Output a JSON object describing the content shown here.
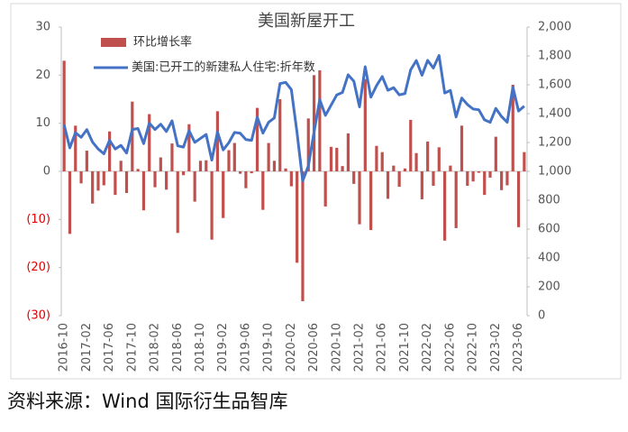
{
  "chart_data": {
    "type": "combo",
    "title": "美国新屋开工",
    "source": "资料来源：Wind 国际衍生品智库",
    "categories": [
      "2016-10",
      null,
      null,
      null,
      "2017-02",
      null,
      null,
      null,
      "2017-06",
      null,
      null,
      null,
      "2017-10",
      null,
      null,
      null,
      "2018-02",
      null,
      null,
      null,
      "2018-06",
      null,
      null,
      null,
      "2018-10",
      null,
      null,
      null,
      "2019-02",
      null,
      null,
      null,
      "2019-06",
      null,
      null,
      null,
      "2019-10",
      null,
      null,
      null,
      "2020-02",
      null,
      null,
      null,
      "2020-06",
      null,
      null,
      null,
      "2020-10",
      null,
      null,
      null,
      "2021-02",
      null,
      null,
      null,
      "2021-06",
      null,
      null,
      null,
      "2021-10",
      null,
      null,
      null,
      "2022-02",
      null,
      null,
      null,
      "2022-06",
      null,
      null,
      null,
      "2022-10",
      null,
      null,
      null,
      "2023-02",
      null,
      null,
      null,
      "2023-06",
      null
    ],
    "series": [
      {
        "name": "环比增长率",
        "kind": "bar",
        "color": "#c0504d",
        "values": [
          23,
          -13,
          9.5,
          -2.5,
          4.3,
          -6.7,
          -4,
          -2.9,
          8.3,
          -4.9,
          2.2,
          -4.5,
          14.5,
          0.5,
          -8.1,
          11.9,
          -3.3,
          2.9,
          -3.8,
          5.8,
          -12.8,
          -0.8,
          9.8,
          -6.3,
          2.2,
          2.3,
          -14.2,
          12.5,
          -9.7,
          4.4,
          5.9,
          -0.5,
          -3.5,
          -0.4,
          13.2,
          -8,
          5.9,
          2.2,
          15,
          0.6,
          -3.1,
          -19,
          -27,
          11,
          20,
          21,
          -7.3,
          5.1,
          4.9,
          1.1,
          7.9,
          -2.6,
          -11,
          19.2,
          -12.2,
          5.3,
          4,
          -5.7,
          1.2,
          -3.2,
          0.6,
          10.7,
          3.8,
          -5.8,
          6.2,
          -3,
          5,
          -14.4,
          1.2,
          -11.8,
          9.5,
          -3,
          -2.1,
          -0.3,
          -4.9,
          -1.3,
          7.2,
          -3.9,
          -2.9,
          18,
          -11.6,
          4
        ]
      },
      {
        "name": "美国:已开工的新建私人住宅:折年数",
        "kind": "line",
        "axis": "y2",
        "color": "#4472c4",
        "values": [
          1323,
          1163,
          1268,
          1236,
          1289,
          1203,
          1155,
          1122,
          1215,
          1155,
          1180,
          1127,
          1290,
          1297,
          1192,
          1334,
          1290,
          1327,
          1276,
          1350,
          1177,
          1168,
          1282,
          1201,
          1228,
          1256,
          1078,
          1273,
          1149,
          1199,
          1270,
          1264,
          1220,
          1215,
          1375,
          1265,
          1340,
          1370,
          1608,
          1617,
          1567,
          1269,
          934,
          1038,
          1273,
          1497,
          1388,
          1459,
          1530,
          1547,
          1669,
          1625,
          1447,
          1725,
          1514,
          1594,
          1657,
          1562,
          1580,
          1530,
          1539,
          1703,
          1768,
          1666,
          1769,
          1716,
          1803,
          1543,
          1561,
          1377,
          1508,
          1463,
          1432,
          1427,
          1357,
          1340,
          1436,
          1380,
          1340,
          1583,
          1418,
          1452
        ]
      }
    ],
    "ylim": [
      -30,
      30
    ],
    "yticks": [
      30,
      20,
      10,
      0,
      {
        "value": -10,
        "label": "(10)"
      },
      {
        "value": -20,
        "label": "(20)"
      },
      {
        "value": -30,
        "label": "(30)"
      }
    ],
    "negative_tick_color": "#e00000",
    "y2lim": [
      0,
      2000
    ],
    "y2ticks": [
      {
        "value": 2000,
        "label": "2,000"
      },
      {
        "value": 1800,
        "label": "1,800"
      },
      {
        "value": 1600,
        "label": "1,600"
      },
      {
        "value": 1400,
        "label": "1,400"
      },
      {
        "value": 1200,
        "label": "1,200"
      },
      {
        "value": 1000,
        "label": "1,000"
      },
      800,
      600,
      400,
      200,
      0
    ],
    "grid": false,
    "legend": "upper left"
  }
}
